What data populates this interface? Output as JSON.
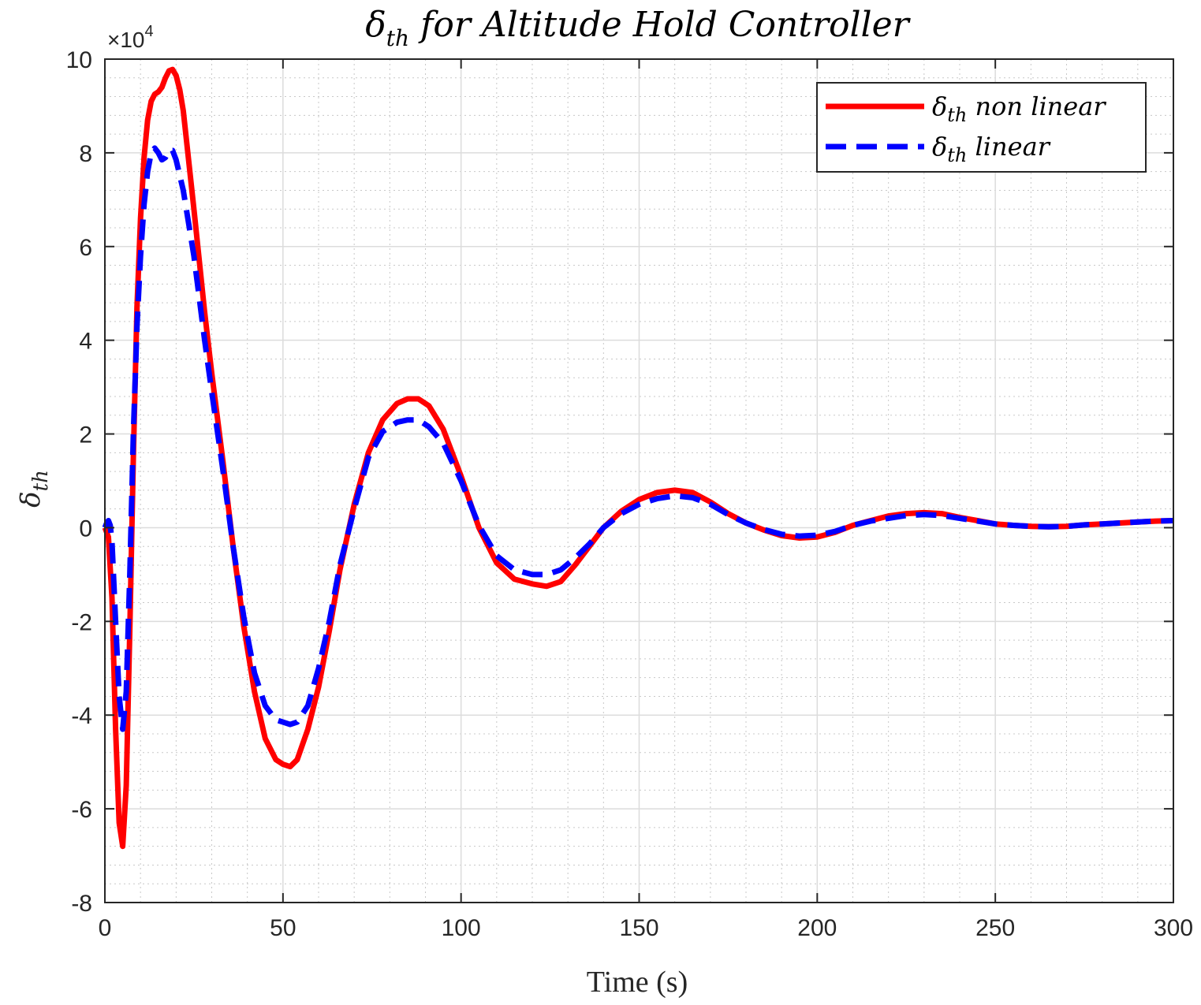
{
  "chart_data": {
    "type": "line",
    "title": "δ",
    "title_sub": "th",
    "title_rest": " for Altitude Hold Controller",
    "xlabel": "Time (s)",
    "ylabel": "δ",
    "ylabel_sub": "th",
    "y_multiplier": "×10",
    "y_multiplier_exp": "4",
    "xlim": [
      0,
      300
    ],
    "ylim": [
      -8,
      10
    ],
    "x_ticks": [
      0,
      50,
      100,
      150,
      200,
      250,
      300
    ],
    "y_ticks": [
      -8,
      -6,
      -4,
      -2,
      0,
      2,
      4,
      6,
      8,
      10
    ],
    "grid": true,
    "minor_grid": true,
    "legend_position": "top-right",
    "series": [
      {
        "name": "δ",
        "name_sub": "th",
        "name_rest": " non linear",
        "color": "#ff0000",
        "style": "solid",
        "points": [
          [
            0,
            0
          ],
          [
            1,
            -0.2
          ],
          [
            2,
            -1.5
          ],
          [
            3,
            -4.3
          ],
          [
            4,
            -6.3
          ],
          [
            5,
            -6.8
          ],
          [
            6,
            -5.5
          ],
          [
            7,
            -2.2
          ],
          [
            8,
            1.5
          ],
          [
            9,
            4.7
          ],
          [
            10,
            6.6
          ],
          [
            11,
            7.9
          ],
          [
            12,
            8.7
          ],
          [
            13,
            9.1
          ],
          [
            14,
            9.25
          ],
          [
            15,
            9.3
          ],
          [
            16,
            9.4
          ],
          [
            17,
            9.6
          ],
          [
            18,
            9.75
          ],
          [
            19,
            9.78
          ],
          [
            20,
            9.65
          ],
          [
            21,
            9.35
          ],
          [
            22,
            8.9
          ],
          [
            23,
            8.2
          ],
          [
            25,
            6.8
          ],
          [
            28,
            4.6
          ],
          [
            30,
            3.3
          ],
          [
            33,
            1.5
          ],
          [
            36,
            -0.4
          ],
          [
            39,
            -2.1
          ],
          [
            42,
            -3.5
          ],
          [
            45,
            -4.5
          ],
          [
            48,
            -4.95
          ],
          [
            50,
            -5.05
          ],
          [
            52,
            -5.1
          ],
          [
            54,
            -4.95
          ],
          [
            57,
            -4.3
          ],
          [
            60,
            -3.4
          ],
          [
            63,
            -2.2
          ],
          [
            66,
            -0.9
          ],
          [
            70,
            0.5
          ],
          [
            74,
            1.6
          ],
          [
            78,
            2.3
          ],
          [
            82,
            2.65
          ],
          [
            85,
            2.75
          ],
          [
            88,
            2.75
          ],
          [
            91,
            2.6
          ],
          [
            95,
            2.1
          ],
          [
            100,
            1.1
          ],
          [
            105,
            0.0
          ],
          [
            110,
            -0.75
          ],
          [
            115,
            -1.1
          ],
          [
            120,
            -1.2
          ],
          [
            124,
            -1.25
          ],
          [
            128,
            -1.15
          ],
          [
            132,
            -0.8
          ],
          [
            136,
            -0.4
          ],
          [
            140,
            0.0
          ],
          [
            145,
            0.35
          ],
          [
            150,
            0.6
          ],
          [
            155,
            0.75
          ],
          [
            160,
            0.8
          ],
          [
            165,
            0.75
          ],
          [
            170,
            0.55
          ],
          [
            175,
            0.3
          ],
          [
            180,
            0.1
          ],
          [
            185,
            -0.05
          ],
          [
            190,
            -0.17
          ],
          [
            195,
            -0.22
          ],
          [
            200,
            -0.2
          ],
          [
            205,
            -0.1
          ],
          [
            210,
            0.05
          ],
          [
            215,
            0.15
          ],
          [
            220,
            0.25
          ],
          [
            225,
            0.3
          ],
          [
            230,
            0.32
          ],
          [
            235,
            0.3
          ],
          [
            240,
            0.22
          ],
          [
            245,
            0.15
          ],
          [
            250,
            0.08
          ],
          [
            255,
            0.05
          ],
          [
            260,
            0.03
          ],
          [
            265,
            0.02
          ],
          [
            270,
            0.03
          ],
          [
            275,
            0.06
          ],
          [
            280,
            0.08
          ],
          [
            285,
            0.1
          ],
          [
            290,
            0.12
          ],
          [
            295,
            0.14
          ],
          [
            300,
            0.15
          ]
        ]
      },
      {
        "name": "δ",
        "name_sub": "th",
        "name_rest": " linear",
        "color": "#0000ff",
        "style": "dashed",
        "points": [
          [
            0,
            0
          ],
          [
            0.5,
            0.1
          ],
          [
            1,
            0.15
          ],
          [
            1.5,
            0.05
          ],
          [
            2,
            -0.3
          ],
          [
            3,
            -2.0
          ],
          [
            4,
            -3.6
          ],
          [
            5,
            -4.3
          ],
          [
            6,
            -3.5
          ],
          [
            7,
            -1.0
          ],
          [
            8,
            2.0
          ],
          [
            9,
            4.3
          ],
          [
            10,
            5.8
          ],
          [
            11,
            6.9
          ],
          [
            12,
            7.6
          ],
          [
            13,
            8.0
          ],
          [
            14,
            8.1
          ],
          [
            15,
            8.0
          ],
          [
            16,
            7.85
          ],
          [
            17,
            7.9
          ],
          [
            18,
            8.05
          ],
          [
            19,
            8.05
          ],
          [
            20,
            7.85
          ],
          [
            22,
            7.2
          ],
          [
            25,
            5.8
          ],
          [
            28,
            4.0
          ],
          [
            30,
            2.9
          ],
          [
            33,
            1.3
          ],
          [
            36,
            -0.4
          ],
          [
            39,
            -1.9
          ],
          [
            42,
            -3.1
          ],
          [
            45,
            -3.8
          ],
          [
            48,
            -4.1
          ],
          [
            50,
            -4.15
          ],
          [
            52,
            -4.2
          ],
          [
            54,
            -4.15
          ],
          [
            57,
            -3.8
          ],
          [
            60,
            -3.0
          ],
          [
            63,
            -2.0
          ],
          [
            66,
            -0.8
          ],
          [
            70,
            0.4
          ],
          [
            74,
            1.5
          ],
          [
            78,
            2.05
          ],
          [
            82,
            2.25
          ],
          [
            85,
            2.3
          ],
          [
            88,
            2.3
          ],
          [
            91,
            2.15
          ],
          [
            95,
            1.8
          ],
          [
            100,
            1.0
          ],
          [
            105,
            0.05
          ],
          [
            110,
            -0.6
          ],
          [
            115,
            -0.9
          ],
          [
            120,
            -1.0
          ],
          [
            124,
            -1.0
          ],
          [
            128,
            -0.9
          ],
          [
            132,
            -0.65
          ],
          [
            136,
            -0.35
          ],
          [
            140,
            0.0
          ],
          [
            145,
            0.3
          ],
          [
            150,
            0.5
          ],
          [
            155,
            0.62
          ],
          [
            160,
            0.68
          ],
          [
            165,
            0.64
          ],
          [
            170,
            0.5
          ],
          [
            175,
            0.28
          ],
          [
            180,
            0.1
          ],
          [
            185,
            -0.04
          ],
          [
            190,
            -0.14
          ],
          [
            195,
            -0.18
          ],
          [
            200,
            -0.16
          ],
          [
            205,
            -0.08
          ],
          [
            210,
            0.05
          ],
          [
            215,
            0.14
          ],
          [
            220,
            0.2
          ],
          [
            225,
            0.26
          ],
          [
            230,
            0.28
          ],
          [
            235,
            0.26
          ],
          [
            240,
            0.2
          ],
          [
            245,
            0.14
          ],
          [
            250,
            0.08
          ],
          [
            255,
            0.05
          ],
          [
            260,
            0.03
          ],
          [
            265,
            0.02
          ],
          [
            270,
            0.03
          ],
          [
            275,
            0.06
          ],
          [
            280,
            0.08
          ],
          [
            285,
            0.1
          ],
          [
            290,
            0.12
          ],
          [
            295,
            0.14
          ],
          [
            300,
            0.15
          ]
        ]
      }
    ]
  }
}
